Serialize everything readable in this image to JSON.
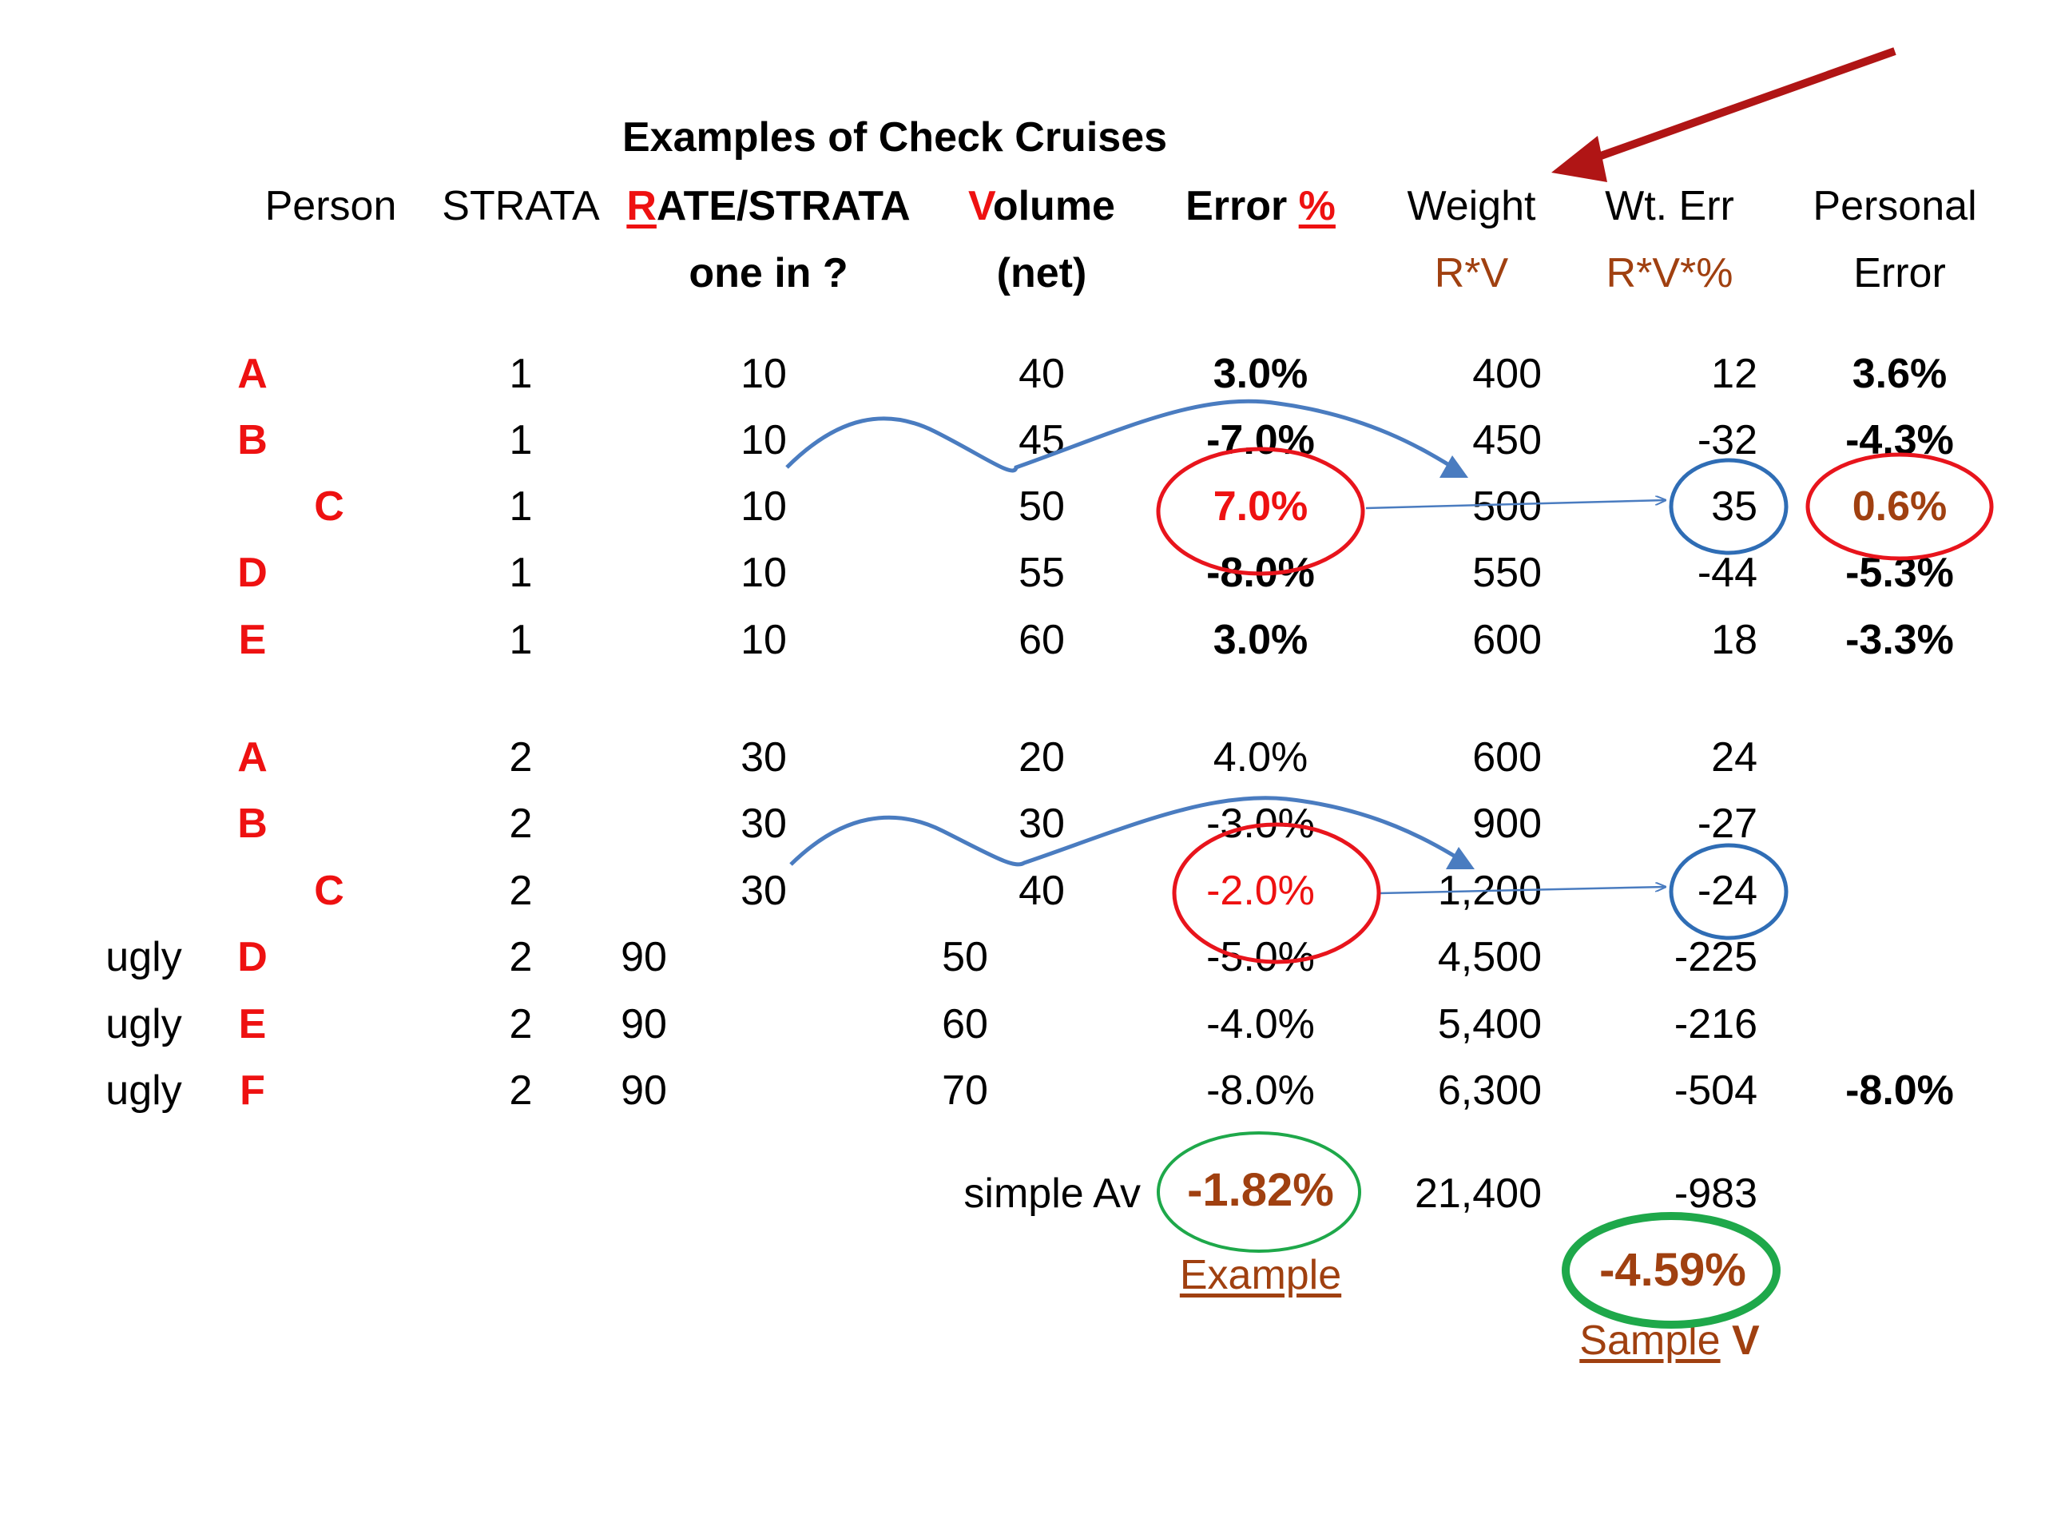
{
  "title": "Examples of Check Cruises",
  "headers": {
    "person": "Person",
    "strata": "STRATA",
    "rate_first": "R",
    "rate_rest": "ATE/STRATA",
    "rate_sub": "one in ?",
    "vol_first": "V",
    "vol_rest": "olume",
    "vol_sub": "(net)",
    "err_main": "Error ",
    "err_pct": "%",
    "weight": "Weight",
    "weight_sub": "R*V",
    "wterr": "Wt. Err",
    "wterr_sub": "R*V*%",
    "personal": "Personal",
    "personal_sub": "Error"
  },
  "rows": [
    {
      "tag": "",
      "person": "A",
      "strata": "1",
      "rate": "10",
      "volume": "40",
      "error": "3.0%",
      "weight": "400",
      "wterr": "12",
      "personal": "3.6%"
    },
    {
      "tag": "",
      "person": "B",
      "strata": "1",
      "rate": "10",
      "volume": "45",
      "error": "-7.0%",
      "weight": "450",
      "wterr": "-32",
      "personal": "-4.3%"
    },
    {
      "tag": "",
      "person": "C",
      "strata": "1",
      "rate": "10",
      "volume": "50",
      "error": "7.0%",
      "weight": "500",
      "wterr": "35",
      "personal": "0.6%"
    },
    {
      "tag": "",
      "person": "D",
      "strata": "1",
      "rate": "10",
      "volume": "55",
      "error": "-8.0%",
      "weight": "550",
      "wterr": "-44",
      "personal": "-5.3%"
    },
    {
      "tag": "",
      "person": "E",
      "strata": "1",
      "rate": "10",
      "volume": "60",
      "error": "3.0%",
      "weight": "600",
      "wterr": "18",
      "personal": "-3.3%"
    },
    {
      "tag": "",
      "person": "A",
      "strata": "2",
      "rate": "30",
      "volume": "20",
      "error": "4.0%",
      "weight": "600",
      "wterr": "24",
      "personal": ""
    },
    {
      "tag": "",
      "person": "B",
      "strata": "2",
      "rate": "30",
      "volume": "30",
      "error": "-3.0%",
      "weight": "900",
      "wterr": "-27",
      "personal": ""
    },
    {
      "tag": "",
      "person": "C",
      "strata": "2",
      "rate": "30",
      "volume": "40",
      "error": "-2.0%",
      "weight": "1,200",
      "wterr": "-24",
      "personal": ""
    },
    {
      "tag": "ugly",
      "person": "D",
      "strata": "2",
      "rate": "90",
      "volume": "50",
      "error": "-5.0%",
      "weight": "4,500",
      "wterr": "-225",
      "personal": ""
    },
    {
      "tag": "ugly",
      "person": "E",
      "strata": "2",
      "rate": "90",
      "volume": "60",
      "error": "-4.0%",
      "weight": "5,400",
      "wterr": "-216",
      "personal": ""
    },
    {
      "tag": "ugly",
      "person": "F",
      "strata": "2",
      "rate": "90",
      "volume": "70",
      "error": "-8.0%",
      "weight": "6,300",
      "wterr": "-504",
      "personal": "-8.0%"
    }
  ],
  "summary": {
    "simple_av_label": "simple Av",
    "simple_av_value": "-1.82%",
    "total_weight": "21,400",
    "total_wterr": "-983",
    "weighted_value": "-4.59%",
    "example_label": "Example",
    "sample_label": "Sample",
    "sample_v": "V"
  },
  "colors": {
    "red_text": "#ee1111",
    "brown_text": "#a04010",
    "red_circle": "#e8141c",
    "blue_circle": "#2f6db5",
    "blue_curve": "#4a7cc0",
    "green_circle": "#1ea84a",
    "dark_red_arrow": "#b01515"
  }
}
